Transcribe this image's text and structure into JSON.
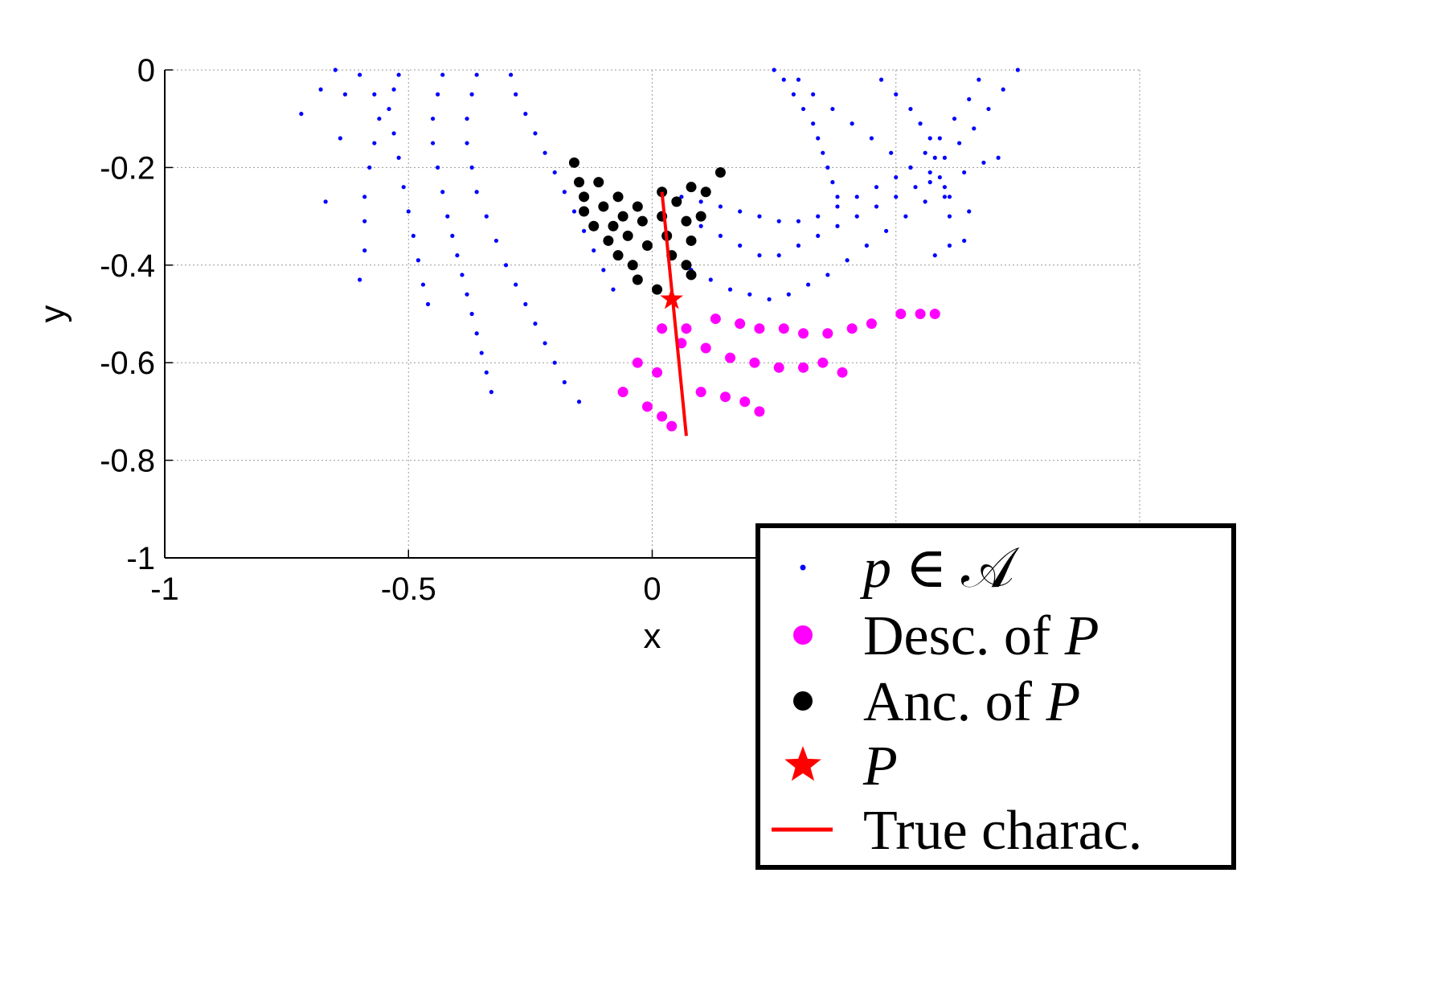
{
  "chart_data": {
    "type": "scatter",
    "xlabel": "x",
    "ylabel": "y",
    "xlim": [
      -1,
      1
    ],
    "ylim": [
      -1,
      0
    ],
    "x_ticks": [
      -1,
      -0.5,
      0,
      0.5,
      1
    ],
    "x_tick_labels": [
      "-1",
      "-0.5",
      "0",
      "",
      ""
    ],
    "y_ticks": [
      0,
      -0.2,
      -0.4,
      -0.6,
      -0.8,
      -1
    ],
    "y_tick_labels": [
      "0",
      "-0.2",
      "-0.4",
      "-0.6",
      "-0.8",
      "-1"
    ],
    "grid": true,
    "legend_position": "bottom-right",
    "colors": {
      "set": "#0000ff",
      "descendants": "#ff00ff",
      "ancestors": "#000000",
      "point": "#ff0000",
      "line": "#ff0000"
    },
    "legend": [
      {
        "key": "set",
        "marker": "small-dot",
        "parts": [
          {
            "t": "p",
            "it": true
          },
          {
            "t": " ∈ ",
            "it": false
          },
          {
            "t": "𝒜",
            "it": false
          }
        ]
      },
      {
        "key": "descendants",
        "marker": "dot",
        "parts": [
          {
            "t": "Desc. of ",
            "it": false
          },
          {
            "t": "P",
            "it": true
          }
        ]
      },
      {
        "key": "ancestors",
        "marker": "dot",
        "parts": [
          {
            "t": "Anc. of ",
            "it": false
          },
          {
            "t": "P",
            "it": true
          }
        ]
      },
      {
        "key": "point",
        "marker": "star",
        "parts": [
          {
            "t": "P",
            "it": true
          }
        ]
      },
      {
        "key": "line",
        "marker": "line",
        "parts": [
          {
            "t": "True charac.",
            "it": false
          }
        ]
      }
    ],
    "series": [
      {
        "key": "set",
        "arcs": [
          {
            "x": [
              -0.72,
              -0.68,
              -0.65,
              -0.63,
              -0.64,
              -0.67
            ],
            "y": [
              -0.09,
              -0.04,
              0.0,
              -0.05,
              -0.14,
              -0.27
            ]
          },
          {
            "x": [
              -0.6,
              -0.57,
              -0.56,
              -0.57,
              -0.58,
              -0.59,
              -0.59,
              -0.59,
              -0.6
            ],
            "y": [
              -0.01,
              -0.05,
              -0.1,
              -0.15,
              -0.2,
              -0.26,
              -0.31,
              -0.37,
              -0.43
            ]
          },
          {
            "x": [
              -0.52,
              -0.53,
              -0.54,
              -0.53,
              -0.52,
              -0.51,
              -0.5,
              -0.49,
              -0.48,
              -0.47,
              -0.46
            ],
            "y": [
              -0.01,
              -0.04,
              -0.08,
              -0.13,
              -0.18,
              -0.24,
              -0.29,
              -0.34,
              -0.39,
              -0.44,
              -0.48
            ]
          },
          {
            "x": [
              -0.43,
              -0.44,
              -0.45,
              -0.45,
              -0.44,
              -0.43,
              -0.42,
              -0.41,
              -0.4,
              -0.39,
              -0.38,
              -0.37,
              -0.36,
              -0.35,
              -0.34,
              -0.33
            ],
            "y": [
              -0.01,
              -0.05,
              -0.1,
              -0.15,
              -0.2,
              -0.25,
              -0.3,
              -0.34,
              -0.38,
              -0.42,
              -0.46,
              -0.5,
              -0.54,
              -0.58,
              -0.62,
              -0.66
            ]
          },
          {
            "x": [
              -0.36,
              -0.37,
              -0.38,
              -0.38,
              -0.37,
              -0.36,
              -0.34,
              -0.32,
              -0.3,
              -0.28,
              -0.26,
              -0.24,
              -0.22,
              -0.2,
              -0.18,
              -0.15
            ],
            "y": [
              -0.01,
              -0.05,
              -0.1,
              -0.15,
              -0.2,
              -0.25,
              -0.3,
              -0.35,
              -0.4,
              -0.44,
              -0.48,
              -0.52,
              -0.56,
              -0.6,
              -0.64,
              -0.68
            ]
          },
          {
            "x": [
              -0.29,
              -0.28,
              -0.26,
              -0.24,
              -0.22,
              -0.2,
              -0.18,
              -0.16,
              -0.14,
              -0.12,
              -0.1,
              -0.08
            ],
            "y": [
              -0.01,
              -0.05,
              -0.09,
              -0.13,
              -0.17,
              -0.21,
              -0.25,
              -0.29,
              -0.33,
              -0.37,
              -0.41,
              -0.45
            ]
          },
          {
            "x": [
              0.25,
              0.27,
              0.29,
              0.31,
              0.33,
              0.34,
              0.35,
              0.36,
              0.37,
              0.38
            ],
            "y": [
              0.0,
              -0.02,
              -0.05,
              -0.08,
              -0.11,
              -0.14,
              -0.17,
              -0.2,
              -0.23,
              -0.26
            ]
          },
          {
            "x": [
              0.3,
              0.33,
              0.37,
              0.41,
              0.45,
              0.49,
              0.53,
              0.57,
              0.61,
              0.65
            ],
            "y": [
              -0.02,
              -0.05,
              -0.08,
              -0.11,
              -0.14,
              -0.17,
              -0.2,
              -0.23,
              -0.26,
              -0.29
            ]
          },
          {
            "x": [
              0.47,
              0.5,
              0.53,
              0.55,
              0.57,
              0.58,
              0.59,
              0.6,
              0.61
            ],
            "y": [
              -0.02,
              -0.05,
              -0.08,
              -0.11,
              -0.14,
              -0.18,
              -0.22,
              -0.26,
              -0.3
            ]
          },
          {
            "x": [
              0.67,
              0.65,
              0.62,
              0.59,
              0.56,
              0.53,
              0.5,
              0.46,
              0.42,
              0.38,
              0.34,
              0.3,
              0.26,
              0.22,
              0.18,
              0.14,
              0.1,
              0.06
            ],
            "y": [
              -0.02,
              -0.06,
              -0.1,
              -0.14,
              -0.17,
              -0.2,
              -0.22,
              -0.24,
              -0.26,
              -0.28,
              -0.3,
              -0.31,
              -0.31,
              -0.3,
              -0.29,
              -0.28,
              -0.27,
              -0.26
            ]
          },
          {
            "x": [
              0.75,
              0.72,
              0.69,
              0.66,
              0.63,
              0.6,
              0.57,
              0.54,
              0.5,
              0.46,
              0.42,
              0.38,
              0.34,
              0.3,
              0.26,
              0.22,
              0.18,
              0.14,
              0.1
            ],
            "y": [
              0.0,
              -0.04,
              -0.08,
              -0.12,
              -0.15,
              -0.18,
              -0.21,
              -0.24,
              -0.26,
              -0.28,
              -0.3,
              -0.32,
              -0.34,
              -0.36,
              -0.38,
              -0.38,
              -0.36,
              -0.34,
              -0.32
            ]
          },
          {
            "x": [
              0.71,
              0.68,
              0.64,
              0.6,
              0.56,
              0.52,
              0.48,
              0.44,
              0.4,
              0.36,
              0.32,
              0.28,
              0.24,
              0.2,
              0.16,
              0.12,
              0.08
            ],
            "y": [
              -0.18,
              -0.19,
              -0.21,
              -0.24,
              -0.27,
              -0.3,
              -0.33,
              -0.36,
              -0.39,
              -0.42,
              -0.44,
              -0.46,
              -0.47,
              -0.46,
              -0.45,
              -0.43,
              -0.41
            ]
          },
          {
            "x": [
              0.64,
              0.61,
              0.58
            ],
            "y": [
              -0.35,
              -0.36,
              -0.38
            ]
          }
        ]
      },
      {
        "key": "descendants",
        "points": [
          {
            "x": 0.02,
            "y": -0.53
          },
          {
            "x": 0.07,
            "y": -0.53
          },
          {
            "x": 0.13,
            "y": -0.51
          },
          {
            "x": 0.18,
            "y": -0.52
          },
          {
            "x": 0.22,
            "y": -0.53
          },
          {
            "x": 0.27,
            "y": -0.53
          },
          {
            "x": 0.31,
            "y": -0.54
          },
          {
            "x": 0.36,
            "y": -0.54
          },
          {
            "x": 0.41,
            "y": -0.53
          },
          {
            "x": 0.45,
            "y": -0.52
          },
          {
            "x": 0.51,
            "y": -0.5
          },
          {
            "x": 0.55,
            "y": -0.5
          },
          {
            "x": 0.58,
            "y": -0.5
          },
          {
            "x": -0.03,
            "y": -0.6
          },
          {
            "x": 0.01,
            "y": -0.62
          },
          {
            "x": 0.06,
            "y": -0.56
          },
          {
            "x": 0.11,
            "y": -0.57
          },
          {
            "x": 0.16,
            "y": -0.59
          },
          {
            "x": 0.21,
            "y": -0.6
          },
          {
            "x": 0.26,
            "y": -0.61
          },
          {
            "x": 0.31,
            "y": -0.61
          },
          {
            "x": 0.35,
            "y": -0.6
          },
          {
            "x": 0.39,
            "y": -0.62
          },
          {
            "x": -0.06,
            "y": -0.66
          },
          {
            "x": -0.01,
            "y": -0.69
          },
          {
            "x": 0.02,
            "y": -0.71
          },
          {
            "x": 0.04,
            "y": -0.73
          },
          {
            "x": 0.1,
            "y": -0.66
          },
          {
            "x": 0.15,
            "y": -0.67
          },
          {
            "x": 0.19,
            "y": -0.68
          },
          {
            "x": 0.22,
            "y": -0.7
          }
        ]
      },
      {
        "key": "ancestors",
        "points": [
          {
            "x": -0.16,
            "y": -0.19
          },
          {
            "x": -0.15,
            "y": -0.23
          },
          {
            "x": -0.11,
            "y": -0.23
          },
          {
            "x": -0.07,
            "y": -0.26
          },
          {
            "x": -0.03,
            "y": -0.28
          },
          {
            "x": 0.02,
            "y": -0.25
          },
          {
            "x": 0.05,
            "y": -0.27
          },
          {
            "x": 0.08,
            "y": -0.24
          },
          {
            "x": 0.11,
            "y": -0.25
          },
          {
            "x": 0.14,
            "y": -0.21
          },
          {
            "x": -0.14,
            "y": -0.26
          },
          {
            "x": -0.1,
            "y": -0.28
          },
          {
            "x": -0.06,
            "y": -0.3
          },
          {
            "x": -0.02,
            "y": -0.31
          },
          {
            "x": 0.02,
            "y": -0.3
          },
          {
            "x": 0.07,
            "y": -0.31
          },
          {
            "x": 0.1,
            "y": -0.3
          },
          {
            "x": -0.14,
            "y": -0.29
          },
          {
            "x": -0.12,
            "y": -0.32
          },
          {
            "x": -0.08,
            "y": -0.32
          },
          {
            "x": -0.05,
            "y": -0.34
          },
          {
            "x": -0.01,
            "y": -0.36
          },
          {
            "x": 0.03,
            "y": -0.34
          },
          {
            "x": 0.08,
            "y": -0.35
          },
          {
            "x": -0.09,
            "y": -0.35
          },
          {
            "x": -0.07,
            "y": -0.38
          },
          {
            "x": -0.04,
            "y": -0.4
          },
          {
            "x": 0.04,
            "y": -0.38
          },
          {
            "x": 0.07,
            "y": -0.4
          },
          {
            "x": -0.03,
            "y": -0.43
          },
          {
            "x": 0.01,
            "y": -0.45
          },
          {
            "x": 0.08,
            "y": -0.42
          }
        ]
      },
      {
        "key": "point",
        "points": [
          {
            "x": 0.04,
            "y": -0.47
          }
        ]
      },
      {
        "key": "line",
        "x": [
          0.02,
          0.07
        ],
        "y": [
          -0.25,
          -0.75
        ]
      }
    ]
  }
}
